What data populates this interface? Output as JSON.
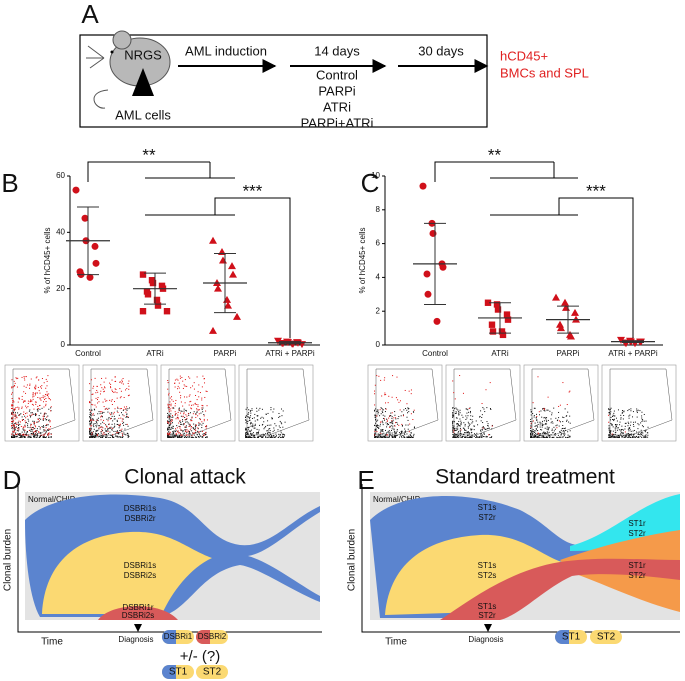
{
  "panel_a": {
    "letter": "A",
    "mouse_label": "NRGS",
    "injection_label": "AML cells",
    "step1": "AML induction",
    "step2": "14 days",
    "treatments": [
      "Control",
      "PARPi",
      "ATRi",
      "PARPi+ATRi"
    ],
    "step3": "30 days",
    "readout": [
      "hCD45+",
      "BMCs and SPL"
    ]
  },
  "chart_data": [
    {
      "type": "scatter",
      "letter": "B",
      "ylabel": "% of hCD45+ cells",
      "categories": [
        "Control",
        "ATRi",
        "PARPi",
        "ATRi + PARPi"
      ],
      "ylim": [
        0,
        60
      ],
      "yticks": [
        0,
        20,
        40,
        60
      ],
      "color": "#d0101a",
      "annotations": [
        "**",
        "***"
      ],
      "groups": [
        {
          "marker": "circle",
          "values": [
            55,
            45,
            37,
            35,
            29,
            26,
            25,
            24
          ],
          "mean": 37,
          "sd": 12
        },
        {
          "marker": "square",
          "values": [
            25,
            23,
            22,
            21,
            20,
            19,
            18,
            16,
            14,
            12,
            12
          ],
          "mean": 20,
          "sd": 5.5
        },
        {
          "marker": "triangle-up",
          "values": [
            37,
            33,
            30,
            28,
            25,
            22,
            20,
            16,
            14,
            10,
            5
          ],
          "mean": 22,
          "sd": 10.5
        },
        {
          "marker": "triangle-down",
          "values": [
            1.5,
            1.2,
            1,
            1,
            0.8,
            0.7,
            0.6,
            0.5,
            0.4,
            0.3
          ],
          "mean": 0.8,
          "sd": 0.4
        }
      ]
    },
    {
      "type": "scatter",
      "letter": "C",
      "ylabel": "% of hCD45+ cells",
      "categories": [
        "Control",
        "ATRi",
        "PARPi",
        "ATRi + PARPi"
      ],
      "ylim": [
        0,
        10
      ],
      "yticks": [
        0,
        2,
        4,
        6,
        8,
        10
      ],
      "color": "#d0101a",
      "annotations": [
        "**",
        "***"
      ],
      "groups": [
        {
          "marker": "circle",
          "values": [
            9.4,
            7.2,
            6.6,
            4.8,
            4.6,
            4.2,
            3,
            1.4
          ],
          "mean": 4.8,
          "sd": 2.4
        },
        {
          "marker": "square",
          "values": [
            2.5,
            2.4,
            2.1,
            1.8,
            1.5,
            1.2,
            0.8,
            0.8,
            0.6
          ],
          "mean": 1.6,
          "sd": 0.9
        },
        {
          "marker": "triangle-up",
          "values": [
            2.8,
            2.5,
            2.2,
            1.9,
            1.5,
            1.2,
            1,
            0.6,
            0.5
          ],
          "mean": 1.5,
          "sd": 0.8
        },
        {
          "marker": "triangle-down",
          "values": [
            0.3,
            0.25,
            0.2,
            0.2,
            0.2,
            0.15,
            0.1,
            0.1
          ],
          "mean": 0.2,
          "sd": 0.05
        }
      ]
    }
  ],
  "panel_d": {
    "letter": "D",
    "title": "Clonal attack",
    "background_label": "Normal/CHIP",
    "clones": [
      [
        "DSBRi1s",
        "DSBRi2r"
      ],
      [
        "DSBRi1s",
        "DSBRi2s"
      ],
      [
        "DSBRi1r",
        "DSBRi2s"
      ]
    ],
    "ylabel": "Clonal burden",
    "xlabel": "Time",
    "diagnosis": "Diagnosis",
    "pills": [
      "DSBRi1",
      "DSBRi2"
    ],
    "note": "+/- (?)",
    "alt_pills": [
      "ST1",
      "ST2"
    ]
  },
  "panel_e": {
    "letter": "E",
    "title": "Standard treatment",
    "background_label": "Normal/CHIP",
    "clones": [
      [
        "ST1s",
        "ST2r"
      ],
      [
        "ST1s",
        "ST2s"
      ],
      [
        "ST1s",
        "ST2r"
      ],
      [
        "ST1r",
        "ST2r"
      ],
      [
        "ST1r",
        "ST2r"
      ]
    ],
    "ylabel": "Clonal burden",
    "xlabel": "Time",
    "diagnosis": "Diagnosis",
    "pills": [
      "ST1",
      "ST2"
    ]
  }
}
